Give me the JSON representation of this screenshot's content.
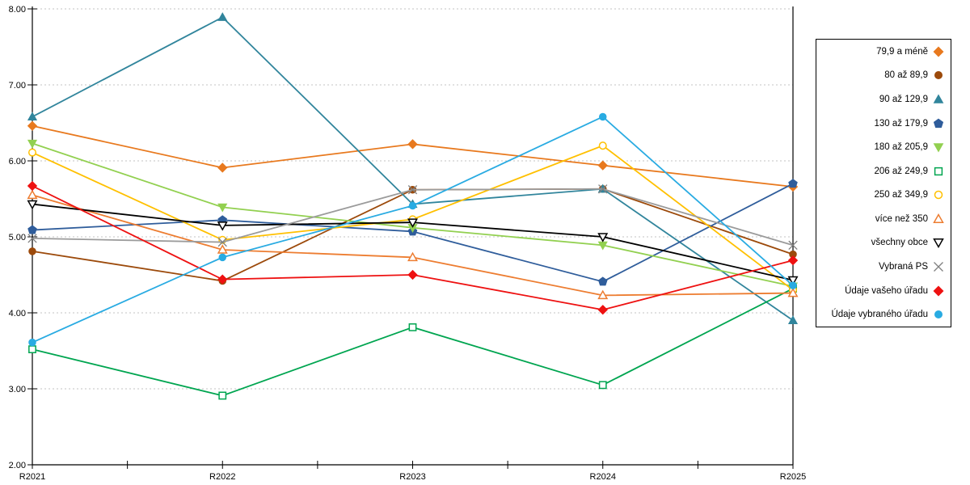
{
  "chart_data": {
    "type": "line",
    "x_labels": [
      "R2021",
      "R2022",
      "R2023",
      "R2024",
      "R2025"
    ],
    "y_tick_labels": [
      "8.00",
      "7.00",
      "6.00",
      "5.00",
      "4.00",
      "3.00",
      "2.00"
    ],
    "ylim": [
      2,
      8
    ],
    "grid": "dashed horizontal",
    "legend_position": "right",
    "series": [
      {
        "name": "79,9 a méně",
        "color": "#E8791E",
        "marker": "diamond",
        "filled": true,
        "values": [
          6.46,
          5.91,
          6.22,
          5.94,
          5.66
        ]
      },
      {
        "name": "80 až 89,9",
        "color": "#9C4A0B",
        "marker": "circle",
        "filled": true,
        "values": [
          4.81,
          4.42,
          5.62,
          5.63,
          4.77
        ]
      },
      {
        "name": "90 až 129,9",
        "color": "#31859C",
        "marker": "triangle-up",
        "filled": true,
        "values": [
          6.58,
          7.89,
          5.43,
          5.63,
          3.9
        ]
      },
      {
        "name": "130 až 179,9",
        "color": "#2F5D9B",
        "marker": "pentagon",
        "filled": true,
        "values": [
          5.09,
          5.22,
          5.07,
          4.41,
          5.7
        ]
      },
      {
        "name": "180 až 205,9",
        "color": "#92D050",
        "marker": "triangle-down",
        "filled": true,
        "values": [
          6.23,
          5.39,
          5.12,
          4.89,
          4.35
        ]
      },
      {
        "name": "206 až 249,9",
        "color": "#00A550",
        "marker": "square",
        "filled": false,
        "values": [
          3.52,
          2.91,
          3.81,
          3.05,
          4.32
        ]
      },
      {
        "name": "250 až 349,9",
        "color": "#FFC000",
        "marker": "circle",
        "filled": false,
        "values": [
          6.11,
          4.96,
          5.23,
          6.2,
          4.3
        ]
      },
      {
        "name": "více než 350",
        "color": "#ED7D31",
        "marker": "triangle-up",
        "filled": false,
        "values": [
          5.55,
          4.83,
          4.73,
          4.23,
          4.26
        ]
      },
      {
        "name": "všechny obce",
        "color": "#000000",
        "marker": "triangle-down",
        "filled": false,
        "values": [
          5.43,
          5.15,
          5.19,
          5.0,
          4.43
        ]
      },
      {
        "name": "Vybraná PS",
        "color": "#9B9B9B",
        "marker": "x",
        "filled": false,
        "values": [
          4.98,
          4.93,
          5.62,
          5.63,
          4.89
        ]
      },
      {
        "name": "Údaje vašeho úřadu",
        "color": "#EE1111",
        "marker": "diamond",
        "filled": true,
        "values": [
          5.67,
          4.44,
          4.5,
          4.04,
          4.69
        ]
      },
      {
        "name": "Údaje vybraného úřadu",
        "color": "#29ABE2",
        "marker": "circle",
        "filled": true,
        "values": [
          3.61,
          4.73,
          5.41,
          6.58,
          4.36
        ]
      }
    ],
    "colors": {
      "axis": "#000000",
      "gridline": "#C3C3C3",
      "background": "#FFFFFF"
    }
  }
}
